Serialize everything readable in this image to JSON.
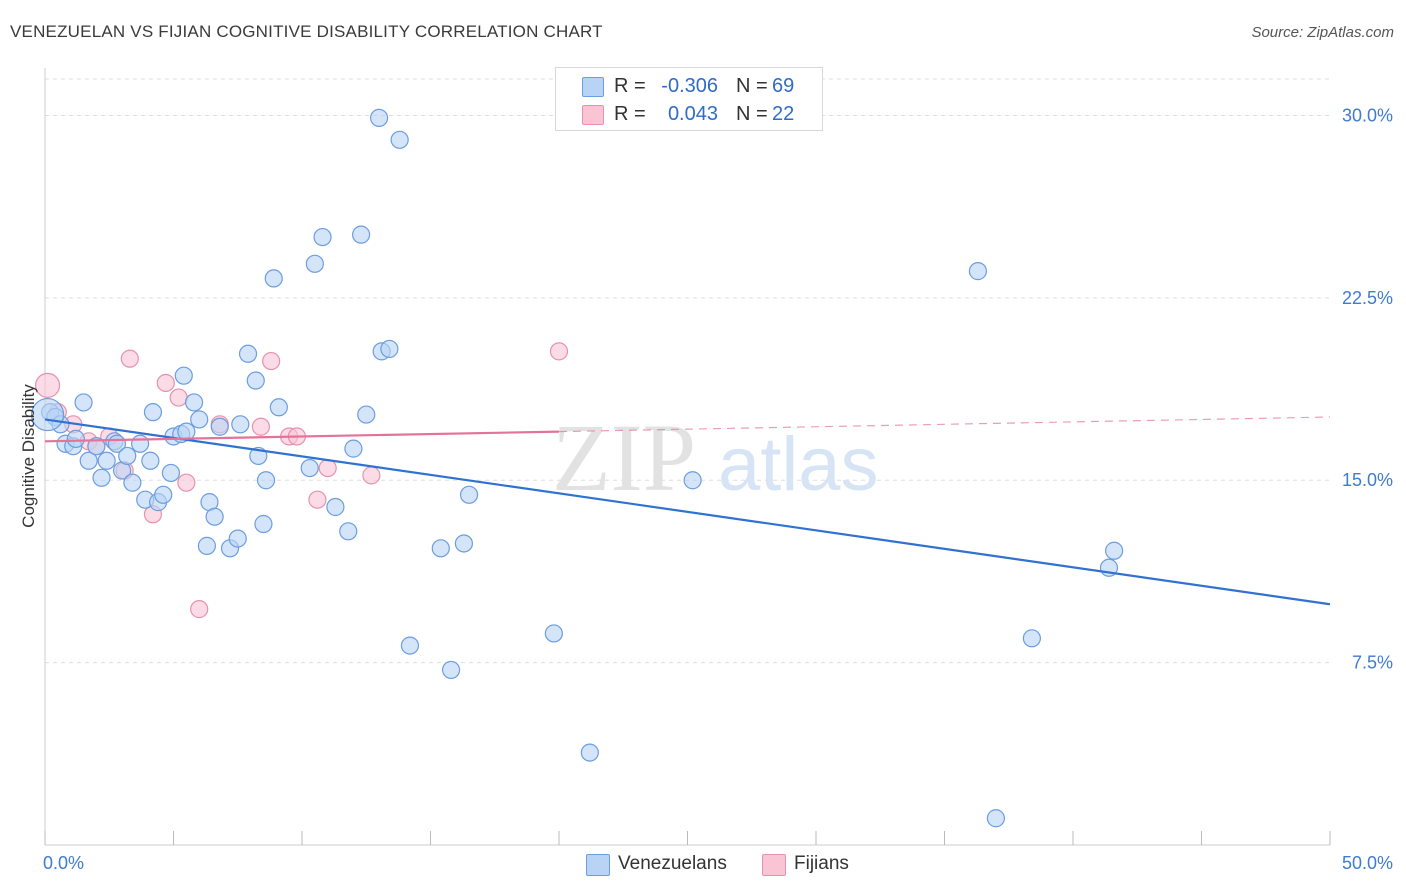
{
  "header": {
    "title": "VENEZUELAN VS FIJIAN COGNITIVE DISABILITY CORRELATION CHART",
    "source": "Source: ZipAtlas.com"
  },
  "watermark": {
    "zip": "ZIP",
    "atlas": "atlas"
  },
  "legend_top": {
    "rows": [
      {
        "r_label": "R =",
        "r_value": "-0.306",
        "n_label": "N =",
        "n_value": "69"
      },
      {
        "r_label": "R =",
        "r_value": "0.043",
        "n_label": "N =",
        "n_value": "22"
      }
    ]
  },
  "legend_bottom": {
    "items": [
      "Venezuelans",
      "Fijians"
    ]
  },
  "colors": {
    "venezuelans_fill": "#b9d3f5",
    "venezuelans_stroke": "#6b9de0",
    "venezuelans_line": "#2f72d1",
    "fijians_fill": "#f9c5d5",
    "fijians_stroke": "#e891ae",
    "fijians_line": "#e4729a",
    "axis_label": "#3f7bd1",
    "grid": "#dddddd"
  },
  "chart_data": {
    "type": "scatter",
    "title": "VENEZUELAN VS FIJIAN COGNITIVE DISABILITY CORRELATION CHART",
    "ylabel": "Cognitive Disability",
    "xlabel": "",
    "xlim": [
      0,
      50
    ],
    "ylim": [
      0,
      31.5
    ],
    "x_tick_labels": [
      "0.0%",
      "50.0%"
    ],
    "y_ticks": [
      7.5,
      15.0,
      22.5,
      30.0
    ],
    "y_tick_labels": [
      "7.5%",
      "15.0%",
      "22.5%",
      "30.0%"
    ],
    "grid": true,
    "legend_placement": "bottom",
    "series": [
      {
        "name": "Venezuelans",
        "r": -0.306,
        "n": 69,
        "trend": {
          "x": [
            0,
            50
          ],
          "y": [
            17.5,
            9.9
          ],
          "solid_until": 50
        },
        "points": [
          [
            0.2,
            17.8
          ],
          [
            0.4,
            17.6
          ],
          [
            0.6,
            17.3
          ],
          [
            0.8,
            16.5
          ],
          [
            1.1,
            16.4
          ],
          [
            1.2,
            16.7
          ],
          [
            1.5,
            18.2
          ],
          [
            1.7,
            15.8
          ],
          [
            2.0,
            16.4
          ],
          [
            2.2,
            15.1
          ],
          [
            2.4,
            15.8
          ],
          [
            2.7,
            16.6
          ],
          [
            2.8,
            16.5
          ],
          [
            3.0,
            15.4
          ],
          [
            3.2,
            16.0
          ],
          [
            3.4,
            14.9
          ],
          [
            3.7,
            16.5
          ],
          [
            3.9,
            14.2
          ],
          [
            4.1,
            15.8
          ],
          [
            4.2,
            17.8
          ],
          [
            4.4,
            14.1
          ],
          [
            4.6,
            14.4
          ],
          [
            4.9,
            15.3
          ],
          [
            5.0,
            16.8
          ],
          [
            5.3,
            16.9
          ],
          [
            5.4,
            19.3
          ],
          [
            5.5,
            17.0
          ],
          [
            5.8,
            18.2
          ],
          [
            6.0,
            17.5
          ],
          [
            6.3,
            12.3
          ],
          [
            6.4,
            14.1
          ],
          [
            6.6,
            13.5
          ],
          [
            6.8,
            17.2
          ],
          [
            7.2,
            12.2
          ],
          [
            7.5,
            12.6
          ],
          [
            7.6,
            17.3
          ],
          [
            7.9,
            20.2
          ],
          [
            8.2,
            19.1
          ],
          [
            8.3,
            16.0
          ],
          [
            8.5,
            13.2
          ],
          [
            8.6,
            15.0
          ],
          [
            8.9,
            23.3
          ],
          [
            9.1,
            18.0
          ],
          [
            10.3,
            15.5
          ],
          [
            10.5,
            23.9
          ],
          [
            10.8,
            25.0
          ],
          [
            11.3,
            13.9
          ],
          [
            11.8,
            12.9
          ],
          [
            12.0,
            16.3
          ],
          [
            12.3,
            25.1
          ],
          [
            12.5,
            17.7
          ],
          [
            13.1,
            20.3
          ],
          [
            13.4,
            20.4
          ],
          [
            13.0,
            29.9
          ],
          [
            13.8,
            29.0
          ],
          [
            14.2,
            8.2
          ],
          [
            15.4,
            12.2
          ],
          [
            15.8,
            7.2
          ],
          [
            16.3,
            12.4
          ],
          [
            16.5,
            14.4
          ],
          [
            19.8,
            8.7
          ],
          [
            21.2,
            3.8
          ],
          [
            25.2,
            15.0
          ],
          [
            36.3,
            23.6
          ],
          [
            37.0,
            1.1
          ],
          [
            38.4,
            8.5
          ],
          [
            41.4,
            11.4
          ],
          [
            41.6,
            12.1
          ],
          [
            0.1,
            17.7
          ]
        ]
      },
      {
        "name": "Fijians",
        "r": 0.043,
        "n": 22,
        "trend": {
          "x": [
            0,
            50
          ],
          "y": [
            16.6,
            17.6
          ],
          "solid_until": 20
        },
        "points": [
          [
            0.1,
            18.9
          ],
          [
            0.5,
            17.8
          ],
          [
            1.1,
            17.3
          ],
          [
            1.7,
            16.6
          ],
          [
            2.0,
            16.4
          ],
          [
            2.5,
            16.8
          ],
          [
            3.1,
            15.4
          ],
          [
            3.3,
            20.0
          ],
          [
            4.2,
            13.6
          ],
          [
            4.7,
            19.0
          ],
          [
            5.2,
            18.4
          ],
          [
            5.5,
            14.9
          ],
          [
            6.0,
            9.7
          ],
          [
            6.8,
            17.3
          ],
          [
            8.4,
            17.2
          ],
          [
            8.8,
            19.9
          ],
          [
            9.5,
            16.8
          ],
          [
            9.8,
            16.8
          ],
          [
            10.6,
            14.2
          ],
          [
            11.0,
            15.5
          ],
          [
            12.7,
            15.2
          ],
          [
            20.0,
            20.3
          ]
        ]
      }
    ]
  }
}
